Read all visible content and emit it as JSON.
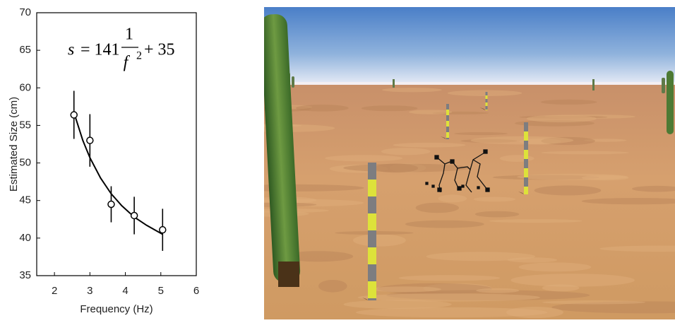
{
  "chart_data": {
    "type": "scatter",
    "xlabel": "Frequency (Hz)",
    "ylabel": "Estimated Size (cm)",
    "xlim": [
      1.5,
      6
    ],
    "ylim": [
      35,
      70
    ],
    "xticks": [
      2,
      3,
      4,
      5,
      6
    ],
    "yticks": [
      35,
      40,
      45,
      50,
      55,
      60,
      65,
      70
    ],
    "x": [
      2.55,
      3.0,
      3.6,
      4.25,
      5.05
    ],
    "values": [
      56.4,
      53.0,
      44.5,
      43.0,
      41.1
    ],
    "errors": [
      3.2,
      3.5,
      2.4,
      2.5,
      2.8
    ],
    "color": "#000000",
    "fit": {
      "x": [
        2.55,
        2.8,
        3.0,
        3.3,
        3.6,
        3.9,
        4.25,
        4.6,
        5.05
      ],
      "values": [
        56.7,
        53.0,
        50.7,
        48.0,
        45.9,
        44.3,
        42.8,
        41.7,
        40.5
      ]
    },
    "equation": {
      "lhs": "s",
      "coef": "= 141",
      "numerator": "1",
      "denominator": "f",
      "exponent": "2",
      "tail": "+ 35"
    }
  }
}
